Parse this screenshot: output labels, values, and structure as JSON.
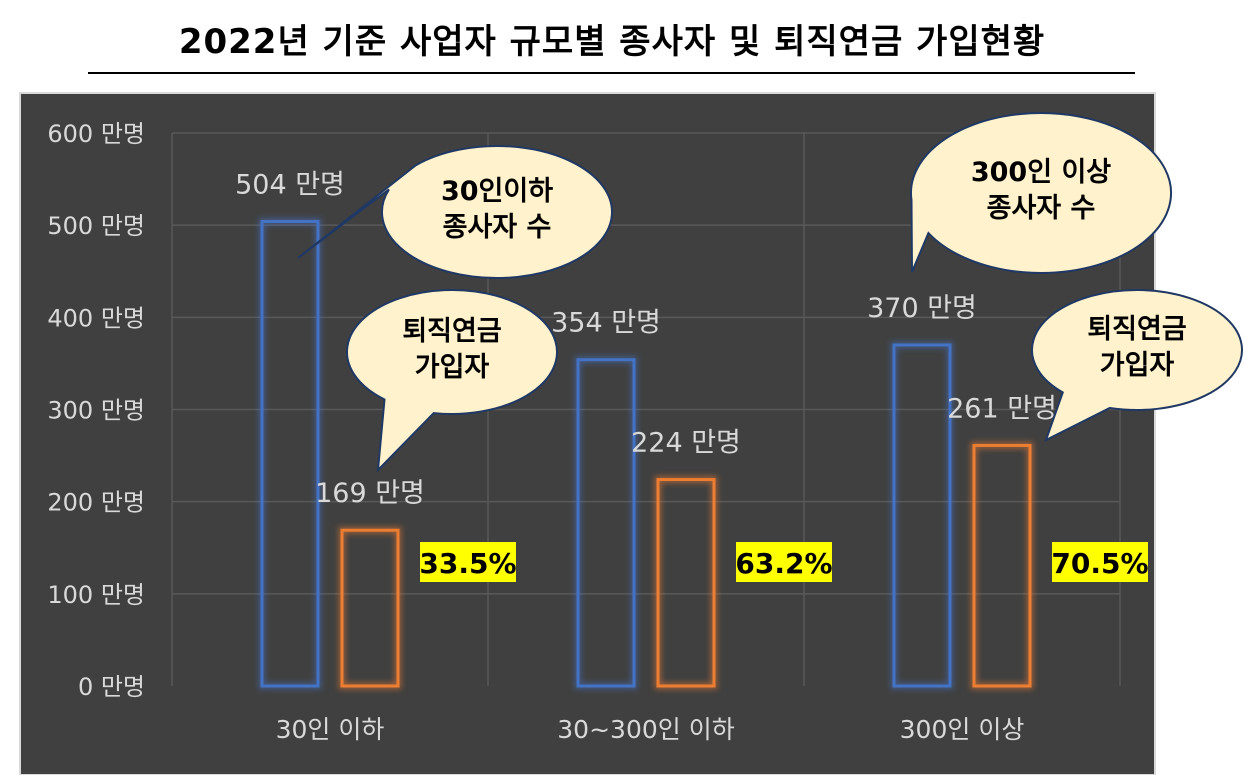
{
  "chart_data": {
    "type": "bar",
    "title": "2022년 기준 사업자 규모별 종사자 및 퇴직연금 가입현황",
    "categories": [
      "30인 이하",
      "30~300인 이하",
      "300인 이상"
    ],
    "series": [
      {
        "values": [
          504,
          354,
          370
        ],
        "labels": [
          "504 만명",
          "354 만명",
          "370 만명"
        ],
        "color": "#4472c4"
      },
      {
        "values": [
          169,
          224,
          261
        ],
        "labels": [
          "169 만명",
          "224 만명",
          "261 만명"
        ],
        "color": "#ed7d31"
      }
    ],
    "percent_labels": [
      "33.5%",
      "63.2%",
      "70.5%"
    ],
    "ylim": [
      0,
      600
    ],
    "yticks": [
      "0 만명",
      "100 만명",
      "200 만명",
      "300 만명",
      "400 만명",
      "500 만명",
      "600 만명"
    ],
    "grid": true,
    "background": "#404040",
    "annotations": [
      {
        "lines": [
          "30인이하",
          "종사자 수"
        ]
      },
      {
        "lines": [
          "퇴직연금",
          "가입자"
        ]
      },
      {
        "lines": [
          "300인 이상",
          "종사자 수"
        ]
      },
      {
        "lines": [
          "퇴직연금",
          "가입자"
        ]
      }
    ]
  }
}
